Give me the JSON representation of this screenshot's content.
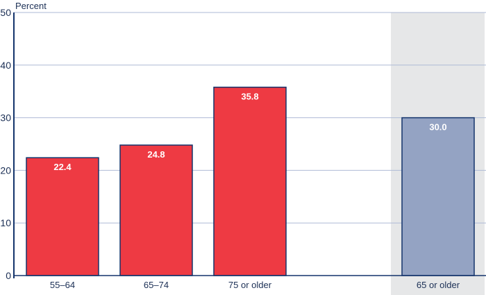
{
  "chart_data": {
    "type": "bar",
    "title": "",
    "xlabel": "",
    "ylabel": "Percent",
    "ylim": [
      0,
      50
    ],
    "yticks": [
      0,
      10,
      20,
      30,
      40,
      50
    ],
    "grid": true,
    "categories": [
      "55–64",
      "65–74",
      "75 or older",
      "65 or older"
    ],
    "values": [
      22.4,
      24.8,
      35.8,
      30.0
    ],
    "data_labels": [
      "22.4",
      "24.8",
      "35.8",
      "30.0"
    ],
    "highlighted_category": "65 or older",
    "colors": {
      "bar": "#ee3a43",
      "highlight_bar": "#94a3c3",
      "bar_outline": "#13336b",
      "highlight_band": "#e6e7e8",
      "grid": "#aebad6",
      "axis": "#13336b"
    }
  }
}
